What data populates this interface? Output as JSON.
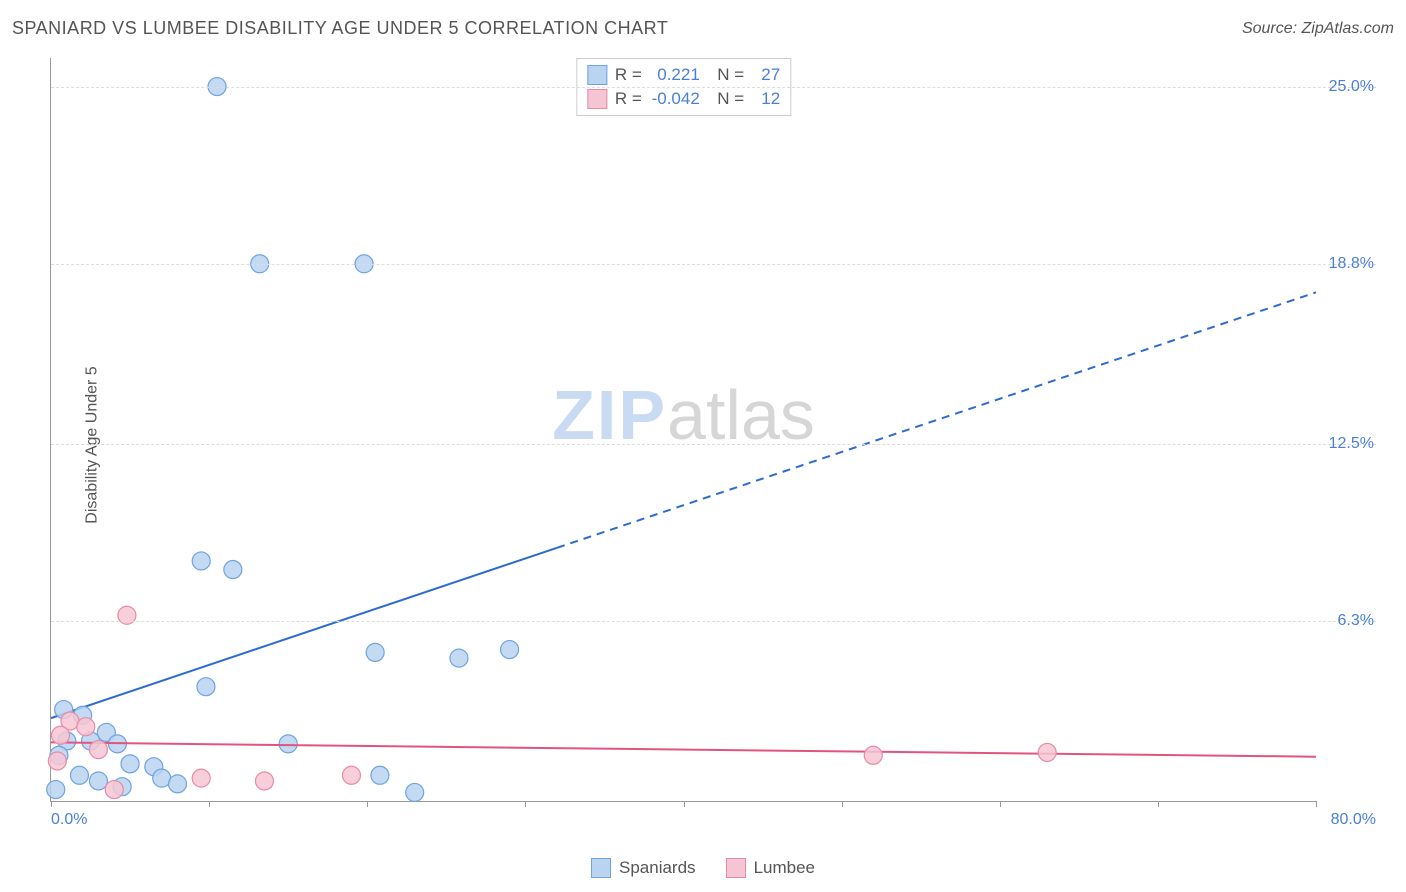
{
  "header": {
    "title": "SPANIARD VS LUMBEE DISABILITY AGE UNDER 5 CORRELATION CHART",
    "source": "Source: ZipAtlas.com"
  },
  "watermark": {
    "zip": "ZIP",
    "atlas": "atlas"
  },
  "chart": {
    "type": "scatter-with-regression",
    "y_axis_label": "Disability Age Under 5",
    "xlim": [
      0,
      80
    ],
    "ylim": [
      0,
      26
    ],
    "x_tick_step": 10,
    "y_ticks": [
      6.3,
      12.5,
      18.8,
      25.0
    ],
    "y_tick_labels": [
      "6.3%",
      "12.5%",
      "18.8%",
      "25.0%"
    ],
    "x_min_label": "0.0%",
    "x_max_label": "80.0%",
    "background_color": "#ffffff",
    "grid_color": "#dddddd",
    "axis_color": "#999999",
    "tick_label_color": "#4a7fd8",
    "marker_radius": 9,
    "marker_stroke_width": 1.2,
    "regression_line_width": 2,
    "series": [
      {
        "name": "Spaniards",
        "fill_color": "#b9d3f0",
        "stroke_color": "#6fa3e0",
        "line_color": "#2d6bd1",
        "R": "0.221",
        "N": "27",
        "points": [
          [
            10.5,
            25.0
          ],
          [
            13.2,
            18.8
          ],
          [
            19.8,
            18.8
          ],
          [
            9.5,
            8.4
          ],
          [
            11.5,
            8.1
          ],
          [
            20.5,
            5.2
          ],
          [
            25.8,
            5.0
          ],
          [
            29.0,
            5.3
          ],
          [
            9.8,
            4.0
          ],
          [
            0.8,
            3.2
          ],
          [
            2.0,
            3.0
          ],
          [
            3.5,
            2.4
          ],
          [
            1.0,
            2.1
          ],
          [
            2.5,
            2.1
          ],
          [
            4.2,
            2.0
          ],
          [
            15.0,
            2.0
          ],
          [
            0.5,
            1.6
          ],
          [
            5.0,
            1.3
          ],
          [
            6.5,
            1.2
          ],
          [
            1.8,
            0.9
          ],
          [
            3.0,
            0.7
          ],
          [
            7.0,
            0.8
          ],
          [
            20.8,
            0.9
          ],
          [
            4.5,
            0.5
          ],
          [
            8.0,
            0.6
          ],
          [
            23.0,
            0.3
          ],
          [
            0.3,
            0.4
          ]
        ],
        "regression": {
          "x1": 0,
          "y1": 2.9,
          "x2": 80,
          "y2": 17.8,
          "solid_until_x": 32
        }
      },
      {
        "name": "Lumbee",
        "fill_color": "#f6c5d4",
        "stroke_color": "#e88aa8",
        "line_color": "#e0557e",
        "R": "-0.042",
        "N": "12",
        "points": [
          [
            4.8,
            6.5
          ],
          [
            1.2,
            2.8
          ],
          [
            2.2,
            2.6
          ],
          [
            0.6,
            2.3
          ],
          [
            3.0,
            1.8
          ],
          [
            0.4,
            1.4
          ],
          [
            9.5,
            0.8
          ],
          [
            13.5,
            0.7
          ],
          [
            19.0,
            0.9
          ],
          [
            4.0,
            0.4
          ],
          [
            52.0,
            1.6
          ],
          [
            63.0,
            1.7
          ]
        ],
        "regression": {
          "x1": 0,
          "y1": 2.05,
          "x2": 80,
          "y2": 1.55,
          "solid_until_x": 80
        }
      }
    ]
  },
  "legend": {
    "bottom": [
      {
        "label": "Spaniards",
        "fill": "#b9d3f0",
        "stroke": "#6fa3e0"
      },
      {
        "label": "Lumbee",
        "fill": "#f6c5d4",
        "stroke": "#e88aa8"
      }
    ]
  }
}
